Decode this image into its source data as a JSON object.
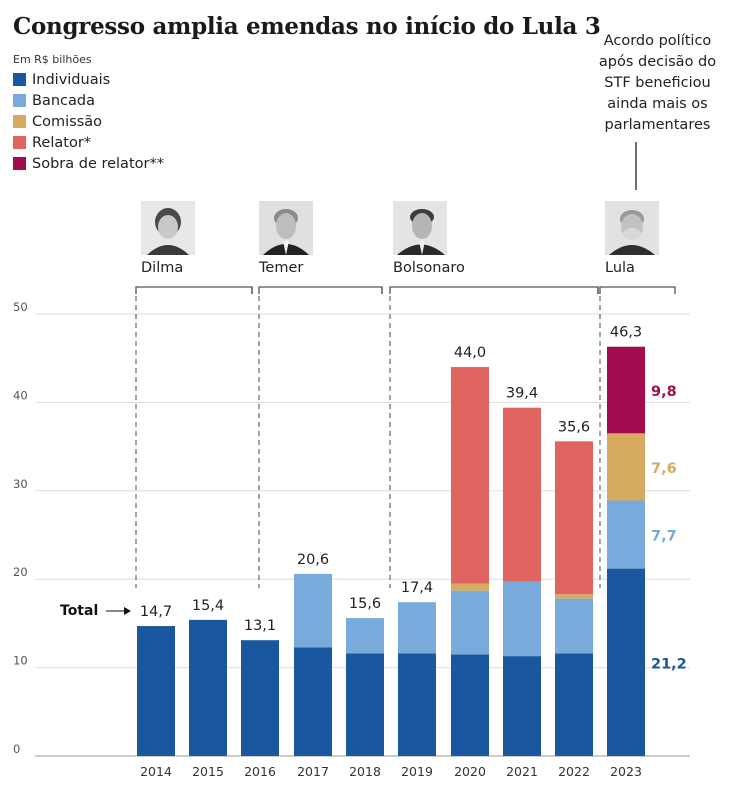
{
  "title": "Congresso amplia emendas no início do Lula 3",
  "unit_label": "Em R$ bilhões",
  "legend": [
    {
      "label": "Individuais",
      "color": "#1a57a1"
    },
    {
      "label": "Bancada",
      "color": "#78aadb"
    },
    {
      "label": "Comissão",
      "color": "#d6aa61"
    },
    {
      "label": "Relator*",
      "color": "#e06560"
    },
    {
      "label": "Sobra de relator**",
      "color": "#a30d4f"
    }
  ],
  "note": "Acordo político após decisão do STF beneficiou ainda mais os parlamentares",
  "presidents": [
    {
      "name": "Dilma",
      "icon": "portrait-photo"
    },
    {
      "name": "Temer",
      "icon": "portrait-photo"
    },
    {
      "name": "Bolsonaro",
      "icon": "portrait-photo"
    },
    {
      "name": "Lula",
      "icon": "portrait-photo"
    }
  ],
  "total_label": "Total",
  "chart_data": {
    "type": "bar",
    "stacked": true,
    "categories": [
      "2014",
      "2015",
      "2016",
      "2017",
      "2018",
      "2019",
      "2020",
      "2021",
      "2022",
      "2023"
    ],
    "series": [
      {
        "name": "Individuais",
        "color": "#1a57a1",
        "values": [
          14.7,
          15.4,
          13.1,
          12.3,
          11.6,
          11.6,
          11.5,
          11.3,
          11.6,
          21.2
        ]
      },
      {
        "name": "Bancada",
        "color": "#78aadb",
        "values": [
          0,
          0,
          0,
          8.3,
          4.0,
          5.8,
          7.2,
          8.4,
          6.2,
          7.7
        ]
      },
      {
        "name": "Comissão",
        "color": "#d6aa61",
        "values": [
          0,
          0,
          0,
          0,
          0,
          0,
          0.8,
          0,
          0.5,
          7.6
        ]
      },
      {
        "name": "Relator*",
        "color": "#e06560",
        "values": [
          0,
          0,
          0,
          0,
          0,
          0,
          24.5,
          19.7,
          17.3,
          0
        ]
      },
      {
        "name": "Sobra de relator**",
        "color": "#a30d4f",
        "values": [
          0,
          0,
          0,
          0,
          0,
          0,
          0,
          0,
          0,
          9.8
        ]
      }
    ],
    "totals": [
      "14,7",
      "15,4",
      "13,1",
      "20,6",
      "15,6",
      "17,4",
      "44,0",
      "39,4",
      "35,6",
      "46,3"
    ],
    "segment_labels_2023": [
      {
        "text": "9,8",
        "color": "#a30d4f",
        "series": 4
      },
      {
        "text": "7,6",
        "color": "#d6aa61",
        "series": 2
      },
      {
        "text": "7,7",
        "color": "#78aadb",
        "series": 1
      },
      {
        "text": "21,2",
        "color": "#1a57a1",
        "series": 0
      }
    ],
    "ylim": [
      0,
      50
    ],
    "yticks": [
      "0",
      "10",
      "20",
      "30",
      "40",
      "50"
    ],
    "grid": true,
    "xlabel": "",
    "ylabel": ""
  }
}
